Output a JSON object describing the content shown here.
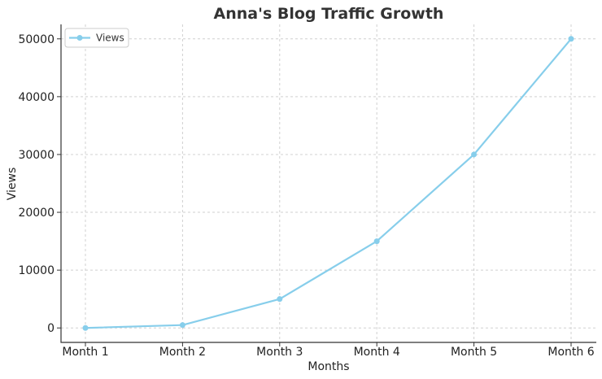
{
  "chart_data": {
    "type": "line",
    "title": "Anna's Blog Traffic Growth",
    "xlabel": "Months",
    "ylabel": "Views",
    "categories": [
      "Month 1",
      "Month 2",
      "Month 3",
      "Month 4",
      "Month 5",
      "Month 6"
    ],
    "series": [
      {
        "name": "Views",
        "values": [
          0,
          500,
          5000,
          15000,
          30000,
          50000
        ],
        "color": "#87CEEB",
        "marker": "circle"
      }
    ],
    "ylim": [
      -2500,
      52500
    ],
    "yticks": [
      0,
      10000,
      20000,
      30000,
      40000,
      50000
    ],
    "grid": true,
    "legend": "top-left"
  }
}
